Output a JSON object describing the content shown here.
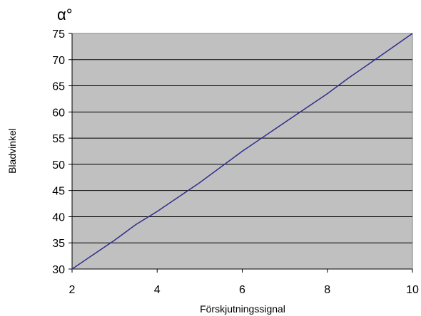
{
  "chart_data": {
    "type": "line",
    "xlabel": "Förskjutningssignal",
    "ylabel": "Bladvinkel",
    "yunit": "α°",
    "xlim": [
      2,
      10
    ],
    "ylim": [
      30,
      75
    ],
    "xticks": [
      2,
      4,
      6,
      8,
      10
    ],
    "yticks": [
      30,
      35,
      40,
      45,
      50,
      55,
      60,
      65,
      70,
      75
    ],
    "grid": "horizontal",
    "legend": "none",
    "series": [
      {
        "x": [
          2,
          3,
          3.5,
          4,
          5,
          6,
          7,
          8,
          8.5,
          9,
          10
        ],
        "y": [
          30,
          35.5,
          38.5,
          41,
          46.5,
          52.5,
          58,
          63.5,
          66.5,
          69.3,
          75
        ],
        "color": "#2e2e8f"
      }
    ],
    "colors": {
      "plot_background": "#c0c0c0",
      "gridline": "#000000",
      "line": "#2e2e8f"
    }
  }
}
